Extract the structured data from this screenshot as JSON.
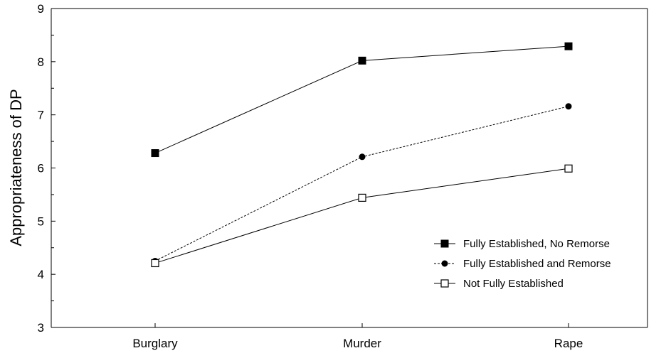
{
  "chart_data": {
    "type": "line",
    "title": "",
    "xlabel": "",
    "ylabel": "Appropriateness of DP",
    "categories": [
      "Burglary",
      "Murder",
      "Rape"
    ],
    "ylim": [
      3,
      9
    ],
    "yticks": [
      "3",
      "4",
      "5",
      "6",
      "7",
      "8",
      "9"
    ],
    "grid": false,
    "legend_position": "lower-right",
    "series": [
      {
        "name": "Fully Established, No Remorse",
        "values": [
          6.28,
          8.02,
          8.29
        ],
        "marker": "filled-square",
        "line": "solid",
        "color": "#000000"
      },
      {
        "name": "Fully Established and Remorse",
        "values": [
          4.25,
          6.21,
          7.16
        ],
        "marker": "filled-circle",
        "line": "dashed",
        "color": "#000000"
      },
      {
        "name": "Not Fully Established",
        "values": [
          4.21,
          5.44,
          5.99
        ],
        "marker": "open-square",
        "line": "solid",
        "color": "#000000"
      }
    ]
  }
}
